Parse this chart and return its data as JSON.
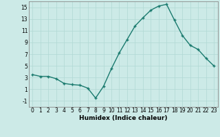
{
  "x": [
    0,
    1,
    2,
    3,
    4,
    5,
    6,
    7,
    8,
    9,
    10,
    11,
    12,
    13,
    14,
    15,
    16,
    17,
    18,
    19,
    20,
    21,
    22,
    23
  ],
  "y": [
    3.5,
    3.2,
    3.2,
    2.8,
    2.0,
    1.8,
    1.7,
    1.2,
    -0.5,
    1.5,
    4.5,
    7.2,
    9.5,
    11.8,
    13.2,
    14.5,
    15.2,
    15.5,
    12.8,
    10.2,
    8.5,
    7.8,
    6.3,
    5.0
  ],
  "line_color": "#1a7a6e",
  "marker": "+",
  "bg_color": "#cceae7",
  "grid_color": "#b0d8d4",
  "xlabel": "Humidex (Indice chaleur)",
  "ylim": [
    -2,
    16
  ],
  "xlim": [
    -0.5,
    23.5
  ],
  "yticks": [
    -1,
    1,
    3,
    5,
    7,
    9,
    11,
    13,
    15
  ],
  "xticks": [
    0,
    1,
    2,
    3,
    4,
    5,
    6,
    7,
    8,
    9,
    10,
    11,
    12,
    13,
    14,
    15,
    16,
    17,
    18,
    19,
    20,
    21,
    22,
    23
  ],
  "tick_fontsize": 5.5,
  "xlabel_fontsize": 6.5,
  "line_width": 1.0,
  "marker_size": 3.5
}
